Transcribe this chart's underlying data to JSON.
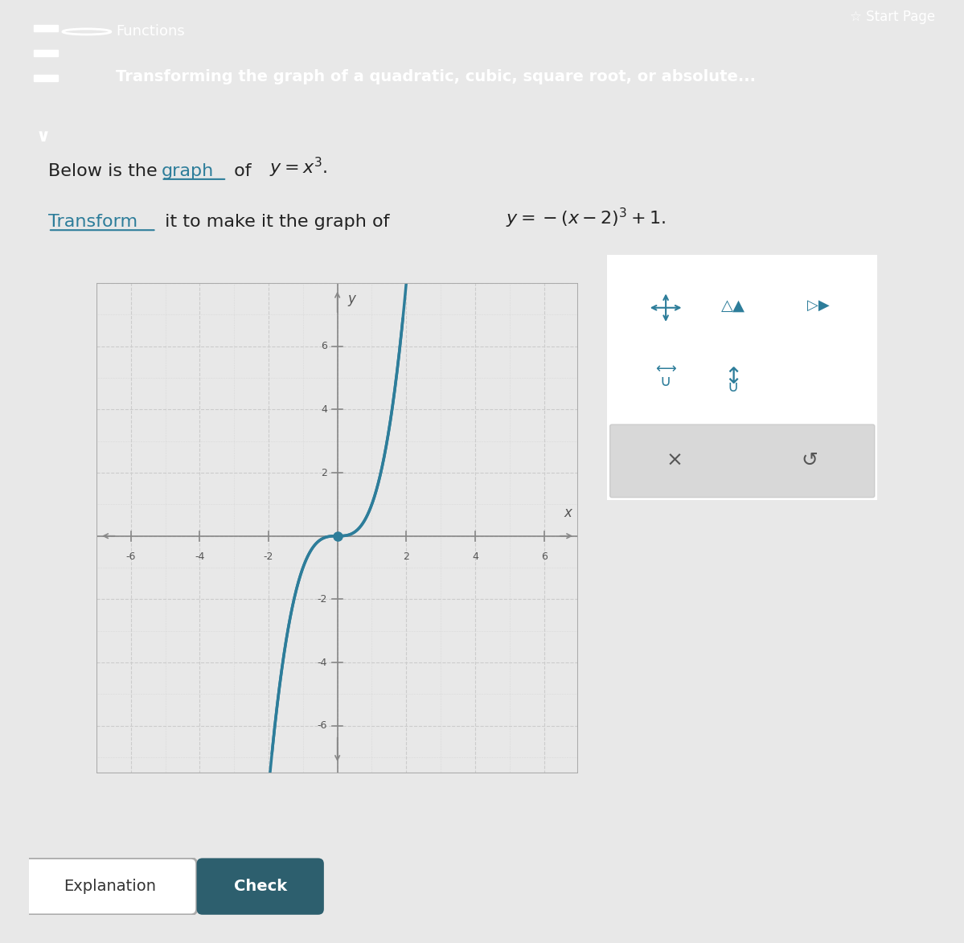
{
  "bg_color": "#e8e8e8",
  "header_color": "#2d7d9a",
  "header_text_color": "#ffffff",
  "header_subtitle": "Functions",
  "header_title": "Transforming the graph of a quadratic, cubic, square root, or absolute...",
  "body_bg": "#f0f0f0",
  "text1": "Below is the ",
  "text1_link": "graph",
  "text1_rest": " of ",
  "eq1": "y=x³",
  "text2": "Transform",
  "text2_rest": " it to make it the graph of ",
  "eq2": "y=−(x−2)³+1.",
  "curve_color": "#2d7d9a",
  "dot_color": "#2d7d9a",
  "grid_color": "#cccccc",
  "axis_color": "#888888",
  "tick_color": "#555555",
  "xlim": [
    -7,
    7
  ],
  "ylim": [
    -7.5,
    8
  ],
  "xticks": [
    -6,
    -4,
    -2,
    2,
    4,
    6
  ],
  "yticks": [
    -6,
    -4,
    -2,
    2,
    4,
    6
  ],
  "dot_x": 0,
  "dot_y": 0,
  "panel_bg": "#ffffff",
  "panel_border": "#cccccc",
  "button_bg": "#e0e0e0",
  "start_page_color": "#333333",
  "bottom_bar_color": "#f5f5f5"
}
